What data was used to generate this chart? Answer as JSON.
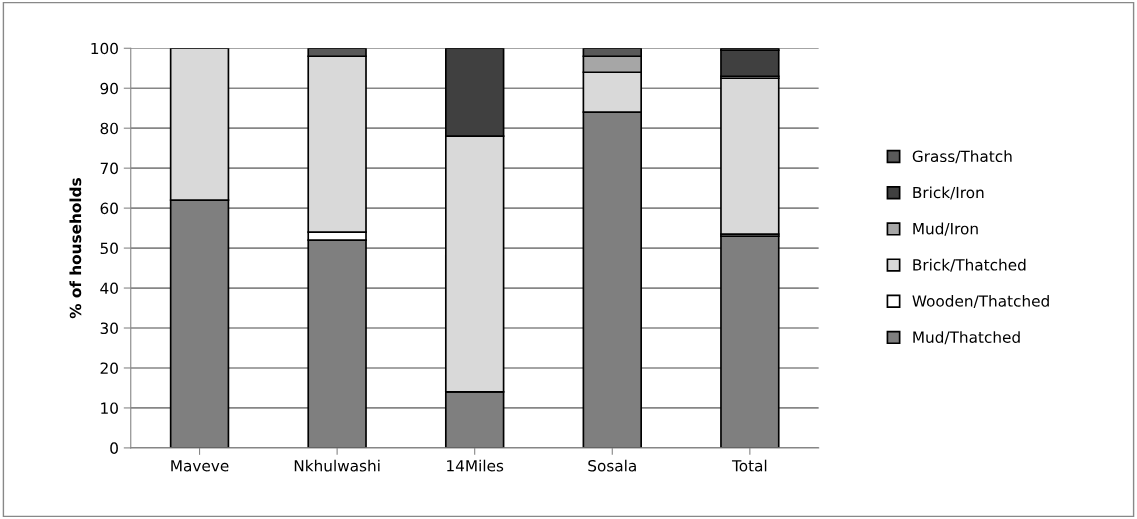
{
  "chart_data": {
    "type": "bar",
    "stacked": true,
    "ylabel": "% of households",
    "categories": [
      "Maveve",
      "Nkhulwashi",
      "14Miles",
      "Sosala",
      "Total"
    ],
    "series": [
      {
        "name": "Mud/Thatched",
        "color": "#7f7f7f",
        "values": [
          62,
          52,
          14,
          84,
          53
        ]
      },
      {
        "name": "Wooden/Thatched",
        "color": "#ffffff",
        "values": [
          0,
          2,
          0,
          0,
          0.5
        ]
      },
      {
        "name": "Brick/Thatched",
        "color": "#d9d9d9",
        "values": [
          38,
          44,
          64,
          10,
          39
        ]
      },
      {
        "name": "Mud/Iron",
        "color": "#a6a6a6",
        "values": [
          0,
          0,
          0,
          4,
          0.5
        ]
      },
      {
        "name": "Brick/Iron",
        "color": "#404040",
        "values": [
          0,
          0,
          22,
          0,
          6.5
        ]
      },
      {
        "name": "Grass/Thatch",
        "color": "#595959",
        "values": [
          0,
          2,
          0,
          2,
          0.5
        ]
      }
    ],
    "ylim": [
      0,
      100
    ],
    "yticks": [
      0,
      10,
      20,
      30,
      40,
      50,
      60,
      70,
      80,
      90,
      100
    ],
    "grid": "y",
    "legend": "right"
  }
}
